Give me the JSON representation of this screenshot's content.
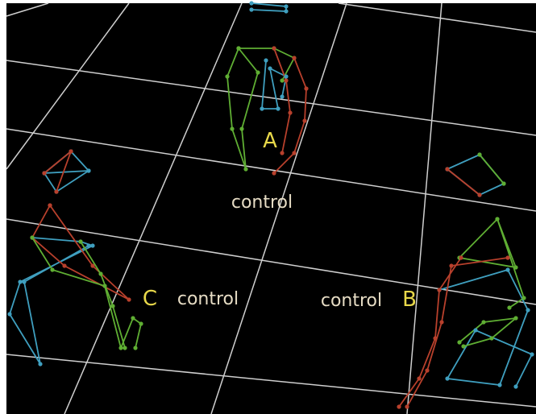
{
  "groups": [
    {
      "letter": "A",
      "caption": "control"
    },
    {
      "letter": "C",
      "caption": "control"
    },
    {
      "letter": "B",
      "caption": "control"
    }
  ]
}
